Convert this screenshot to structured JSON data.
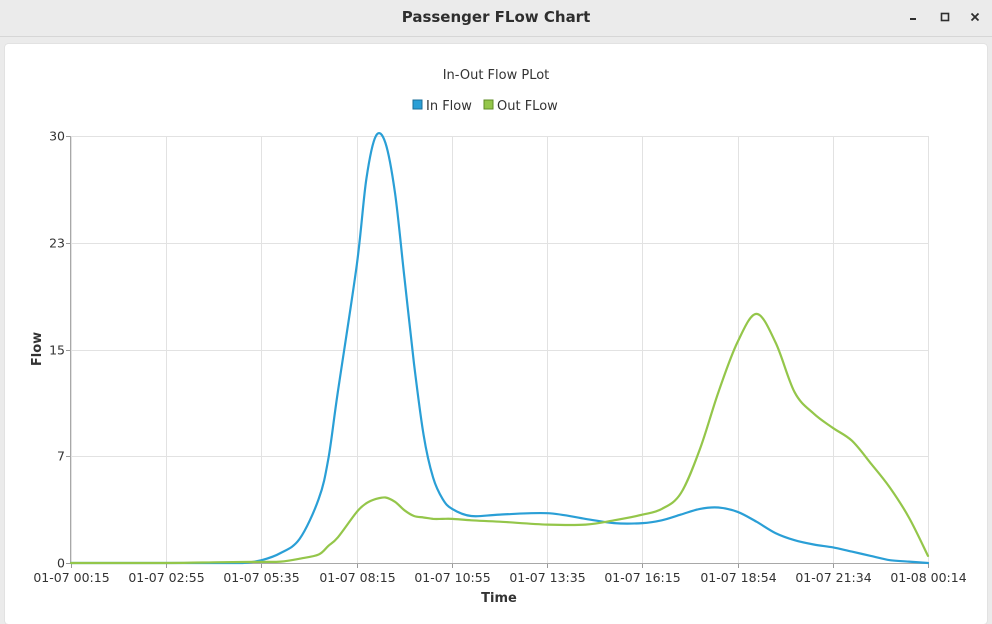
{
  "window": {
    "title": "Passenger FLow Chart",
    "controls": [
      "minimize-icon",
      "maximize-icon",
      "close-icon"
    ]
  },
  "colors": {
    "in_flow": "#2a9fd6",
    "out_flow": "#94c64a",
    "grid": "#e2e2e2",
    "axis_text": "#333333"
  },
  "chart_data": {
    "type": "line",
    "title": "In-Out Flow PLot",
    "xlabel": "Time",
    "ylabel": "Flow",
    "legend": "top-center",
    "grid": true,
    "xlim": [
      "01-07 00:15",
      "01-08 00:14"
    ],
    "ylim": [
      0,
      30
    ],
    "x_ticks": [
      "01-07 00:15",
      "01-07 02:55",
      "01-07 05:35",
      "01-07 08:15",
      "01-07 10:55",
      "01-07 13:35",
      "01-07 16:15",
      "01-07 18:54",
      "01-07 21:34",
      "01-08 00:14"
    ],
    "y_ticks": [
      "0",
      "7",
      "15",
      "23",
      "30"
    ],
    "x": [
      "01-07 00:15",
      "01-07 02:55",
      "01-07 04:15",
      "01-07 05:03",
      "01-07 05:35",
      "01-07 06:07",
      "01-07 06:39",
      "01-07 07:11",
      "01-07 07:27",
      "01-07 07:43",
      "01-07 08:15",
      "01-07 08:31",
      "01-07 08:47",
      "01-07 09:03",
      "01-07 09:19",
      "01-07 09:35",
      "01-07 09:51",
      "01-07 10:07",
      "01-07 10:23",
      "01-07 10:39",
      "01-07 10:55",
      "01-07 11:27",
      "01-07 12:15",
      "01-07 13:35",
      "01-07 14:39",
      "01-07 15:27",
      "01-07 16:15",
      "01-07 16:47",
      "01-07 17:19",
      "01-07 17:51",
      "01-07 18:22",
      "01-07 18:54",
      "01-07 19:26",
      "01-07 19:58",
      "01-07 20:30",
      "01-07 21:02",
      "01-07 21:34",
      "01-07 22:06",
      "01-07 22:38",
      "01-07 23:10",
      "01-07 23:42",
      "01-08 00:14"
    ],
    "series": [
      {
        "name": "In Flow",
        "values": [
          0,
          0,
          0,
          0,
          0.2,
          0.7,
          1.7,
          4.5,
          7.3,
          12,
          21,
          27,
          30,
          29.5,
          26,
          20,
          14,
          9,
          6,
          4.5,
          3.8,
          3.3,
          3.4,
          3.5,
          3.1,
          2.8,
          2.8,
          3,
          3.4,
          3.8,
          3.9,
          3.6,
          2.9,
          2.1,
          1.6,
          1.3,
          1.1,
          0.8,
          0.5,
          0.2,
          0.1,
          0
        ]
      },
      {
        "name": "Out FLow",
        "values": [
          0,
          0,
          0.05,
          0.07,
          0.08,
          0.1,
          0.3,
          0.6,
          1.2,
          1.8,
          3.6,
          4.2,
          4.5,
          4.6,
          4.3,
          3.7,
          3.3,
          3.2,
          3.1,
          3.1,
          3.1,
          3.0,
          2.9,
          2.7,
          2.7,
          3.0,
          3.4,
          3.8,
          4.9,
          8,
          12,
          15.5,
          17.5,
          15.5,
          12,
          10.5,
          9.5,
          8.6,
          7,
          5.3,
          3.2,
          0.5
        ]
      }
    ]
  }
}
